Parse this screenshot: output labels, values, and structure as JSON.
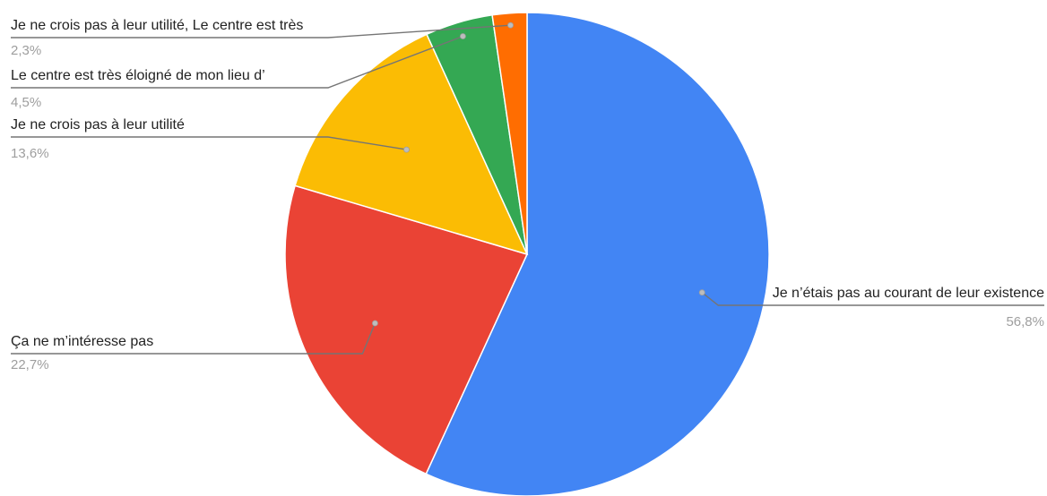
{
  "chart_data": {
    "type": "pie",
    "slices": [
      {
        "label": "Je n’étais pas au courant de leur existence",
        "value": 56.8,
        "value_label": "56,8%",
        "color": "#4285F4"
      },
      {
        "label": "Ça ne m’intéresse pas",
        "value": 22.7,
        "value_label": "22,7%",
        "color": "#EA4335"
      },
      {
        "label": "Je ne crois pas à leur utilité",
        "value": 13.6,
        "value_label": "13,6%",
        "color": "#FBBC04"
      },
      {
        "label": "Le centre est très éloigné de mon lieu d’",
        "value": 4.5,
        "value_label": "4,5%",
        "color": "#34A853"
      },
      {
        "label": "Je ne crois pas à leur utilité, Le centre est très",
        "value": 2.3,
        "value_label": "2,3%",
        "color": "#FF6D01"
      }
    ],
    "start_angle": "12 o'clock",
    "direction": "clockwise",
    "legend": "none (labels with leader lines)"
  }
}
